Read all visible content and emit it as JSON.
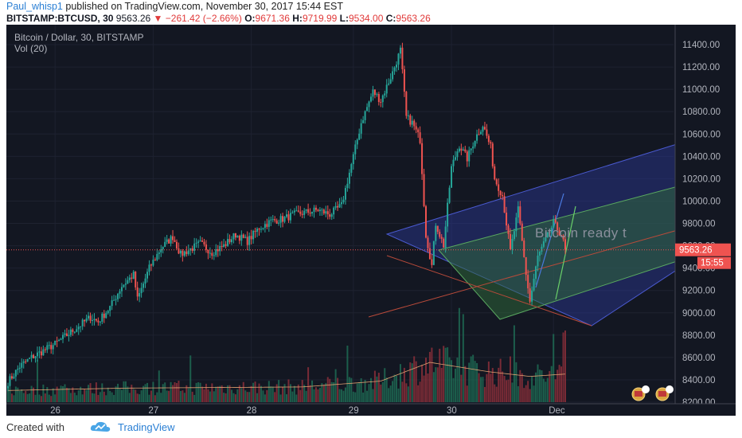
{
  "header": {
    "author": "Paul_whisp1",
    "publish_text": "published on TradingView.com, November 30, 2017 15:44 EST",
    "symbol": "BITSTAMP:BTCUSD, 30",
    "last": "9563.26",
    "change": "−261.42 (−2.66%)",
    "o_label": "O:",
    "o_value": "9671.36",
    "h_label": "H:",
    "h_value": "9719.99",
    "l_label": "L:",
    "l_value": "9534.00",
    "c_label": "C:",
    "c_value": "9563.26"
  },
  "chart_overlay": {
    "title": "Bitcoin / Dollar, 30, BITSTAMP",
    "volume_label": "Vol (20)",
    "annotation": "Bitcoin ready t",
    "price_tag": "9563.26",
    "countdown_tag": "15:55"
  },
  "chart_data": {
    "type": "candlestick",
    "y_ticks": [
      "11400.00",
      "11200.00",
      "11000.00",
      "10800.00",
      "10600.00",
      "10400.00",
      "10200.00",
      "10000.00",
      "9800.00",
      "9600.00",
      "9400.00",
      "9200.00",
      "9000.00",
      "8800.00",
      "8600.00",
      "8400.00",
      "8200.00"
    ],
    "y_tick_values": [
      11400,
      11200,
      11000,
      10800,
      10600,
      10400,
      10200,
      10000,
      9800,
      9600,
      9400,
      9200,
      9000,
      8800,
      8600,
      8400,
      8200
    ],
    "ylim": [
      8150,
      11550
    ],
    "x_ticks": [
      "26",
      "27",
      "28",
      "29",
      "30",
      "Dec"
    ],
    "last_price": 9563.26,
    "colors": {
      "background": "#131722",
      "up": "#26a69a",
      "down": "#ef5350",
      "channel_blue": "#2c3a9a",
      "channel_green": "#2f6b3a"
    },
    "anchors": [
      [
        0,
        8380
      ],
      [
        6,
        8520
      ],
      [
        12,
        8600
      ],
      [
        18,
        8660
      ],
      [
        24,
        8720
      ],
      [
        30,
        8800
      ],
      [
        36,
        8880
      ],
      [
        42,
        8960
      ],
      [
        46,
        8920
      ],
      [
        52,
        9050
      ],
      [
        58,
        9240
      ],
      [
        64,
        9340
      ],
      [
        66,
        9120
      ],
      [
        72,
        9400
      ],
      [
        78,
        9580
      ],
      [
        84,
        9680
      ],
      [
        88,
        9520
      ],
      [
        92,
        9560
      ],
      [
        98,
        9620
      ],
      [
        104,
        9540
      ],
      [
        110,
        9600
      ],
      [
        116,
        9700
      ],
      [
        122,
        9640
      ],
      [
        128,
        9760
      ],
      [
        134,
        9820
      ],
      [
        140,
        9840
      ],
      [
        146,
        9880
      ],
      [
        152,
        9900
      ],
      [
        158,
        9920
      ],
      [
        164,
        9880
      ],
      [
        170,
        9960
      ],
      [
        176,
        10400
      ],
      [
        180,
        10700
      ],
      [
        186,
        10980
      ],
      [
        190,
        10900
      ],
      [
        196,
        11150
      ],
      [
        200,
        11350
      ],
      [
        203,
        10750
      ],
      [
        206,
        10700
      ],
      [
        210,
        10550
      ],
      [
        213,
        9700
      ],
      [
        216,
        9420
      ],
      [
        218,
        9800
      ],
      [
        222,
        9600
      ],
      [
        226,
        10300
      ],
      [
        230,
        10500
      ],
      [
        234,
        10380
      ],
      [
        238,
        10560
      ],
      [
        242,
        10680
      ],
      [
        246,
        10480
      ],
      [
        248,
        10200
      ],
      [
        252,
        10050
      ],
      [
        256,
        9550
      ],
      [
        260,
        9920
      ],
      [
        264,
        9350
      ],
      [
        266,
        9100
      ],
      [
        270,
        9500
      ],
      [
        274,
        9650
      ],
      [
        278,
        9800
      ],
      [
        282,
        9700
      ],
      [
        284,
        9563
      ]
    ],
    "volume_ma": [
      [
        0,
        1
      ],
      [
        60,
        1.2
      ],
      [
        150,
        1.3
      ],
      [
        190,
        1.8
      ],
      [
        215,
        3.4
      ],
      [
        245,
        2.6
      ],
      [
        266,
        2.2
      ],
      [
        284,
        2.4
      ]
    ]
  }
}
